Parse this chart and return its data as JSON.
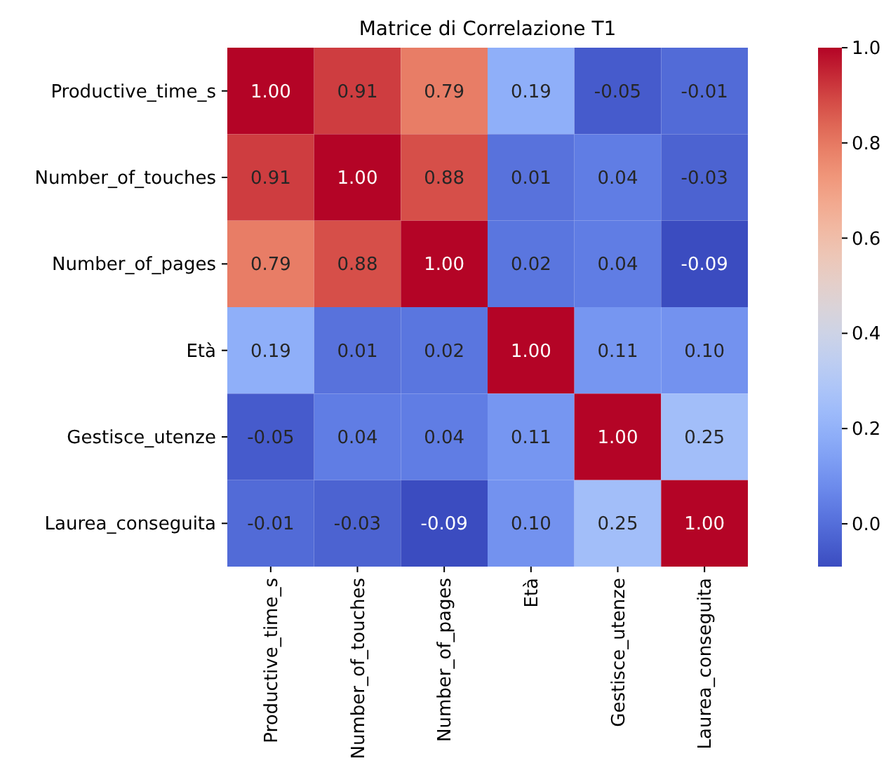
{
  "chart_data": {
    "type": "heatmap",
    "title": "Matrice di Correlazione T1",
    "categories": [
      "Productive_time_s",
      "Number_of_touches",
      "Number_of_pages",
      "Età",
      "Gestisce_utenze",
      "Laurea_conseguita"
    ],
    "y_categories": [
      "Productive_time_s",
      "Number_of_touches",
      "Number_of_pages",
      "Età",
      "Gestisce_utenze",
      "Laurea_conseguita"
    ],
    "cells": [
      [
        1.0,
        0.91,
        0.79,
        0.19,
        -0.05,
        -0.01
      ],
      [
        0.91,
        1.0,
        0.88,
        0.01,
        0.04,
        -0.03
      ],
      [
        0.79,
        0.88,
        1.0,
        0.02,
        0.04,
        -0.09
      ],
      [
        0.19,
        0.01,
        0.02,
        1.0,
        0.11,
        0.1
      ],
      [
        -0.05,
        0.04,
        0.04,
        0.11,
        1.0,
        0.25
      ],
      [
        -0.01,
        -0.03,
        -0.09,
        0.1,
        0.25,
        1.0
      ]
    ],
    "cell_labels": [
      [
        "1.00",
        "0.91",
        "0.79",
        "0.19",
        "-0.05",
        "-0.01"
      ],
      [
        "0.91",
        "1.00",
        "0.88",
        "0.01",
        "0.04",
        "-0.03"
      ],
      [
        "0.79",
        "0.88",
        "1.00",
        "0.02",
        "0.04",
        "-0.09"
      ],
      [
        "0.19",
        "0.01",
        "0.02",
        "1.00",
        "0.11",
        "0.10"
      ],
      [
        "-0.05",
        "0.04",
        "0.04",
        "0.11",
        "1.00",
        "0.25"
      ],
      [
        "-0.01",
        "-0.03",
        "-0.09",
        "0.10",
        "0.25",
        "1.00"
      ]
    ],
    "clim": [
      -0.09,
      1.0
    ],
    "cticks": [
      {
        "value": 0,
        "label": "0.0"
      },
      {
        "value": 0.2,
        "label": "0.2"
      },
      {
        "value": 0.4,
        "label": "0.4"
      },
      {
        "value": 0.6,
        "label": "0.6"
      },
      {
        "value": 0.8,
        "label": "0.8"
      },
      {
        "value": 1,
        "label": "1.0"
      }
    ]
  }
}
